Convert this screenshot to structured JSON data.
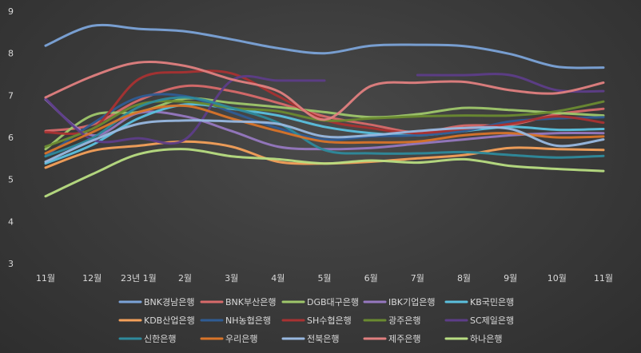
{
  "chart_data": {
    "type": "line",
    "categories": [
      "11월",
      "12월",
      "23년 1월",
      "2월",
      "3월",
      "4월",
      "5월",
      "6월",
      "7월",
      "8월",
      "9월",
      "10월",
      "11월"
    ],
    "ylim": [
      3,
      9
    ],
    "yticks": [
      "3",
      "4",
      "5",
      "6",
      "7",
      "8",
      "9"
    ],
    "grid": false,
    "legend_position": "bottom",
    "series": [
      {
        "name": "BNK경남은행",
        "color": "#7ba3d8",
        "values": [
          8.18,
          8.65,
          8.58,
          8.52,
          8.33,
          8.12,
          8.0,
          8.18,
          8.2,
          8.17,
          7.98,
          7.68,
          7.66
        ]
      },
      {
        "name": "BNK부산은행",
        "color": "#d86a6a",
        "values": [
          6.15,
          6.3,
          6.88,
          7.22,
          7.1,
          6.82,
          6.5,
          6.3,
          6.12,
          6.28,
          6.3,
          6.55,
          6.68
        ]
      },
      {
        "name": "DGB대구은행",
        "color": "#9fc76b",
        "values": [
          5.72,
          6.52,
          6.6,
          6.92,
          6.82,
          6.72,
          6.6,
          6.48,
          6.55,
          6.7,
          6.65,
          6.58,
          6.52
        ]
      },
      {
        "name": "IBK기업은행",
        "color": "#9678c0",
        "values": [
          6.9,
          6.05,
          6.58,
          6.5,
          6.15,
          5.78,
          5.72,
          5.75,
          5.85,
          5.95,
          6.05,
          6.1,
          6.1
        ]
      },
      {
        "name": "KB국민은행",
        "color": "#5bc0de",
        "values": [
          5.38,
          5.82,
          6.45,
          6.78,
          6.68,
          6.52,
          6.25,
          6.1,
          6.05,
          6.15,
          6.25,
          6.18,
          6.2
        ]
      },
      {
        "name": "KDB산업은행",
        "color": "#f4a05a",
        "values": [
          5.28,
          5.68,
          5.8,
          5.9,
          5.78,
          5.42,
          5.38,
          5.42,
          5.5,
          5.58,
          5.75,
          5.72,
          5.7
        ]
      },
      {
        "name": "NH농협은행",
        "color": "#2f5c94",
        "values": [
          5.55,
          6.32,
          6.95,
          6.98,
          6.6,
          6.22,
          5.95,
          6.02,
          6.05,
          6.15,
          6.38,
          6.45,
          6.48
        ]
      },
      {
        "name": "SH수협은행",
        "color": "#a83232",
        "values": [
          6.12,
          6.2,
          7.38,
          7.55,
          7.52,
          6.98,
          6.42,
          6.22,
          6.1,
          6.2,
          6.32,
          6.5,
          6.35
        ]
      },
      {
        "name": "광주은행",
        "color": "#6a8a30",
        "values": [
          5.78,
          6.2,
          6.78,
          6.85,
          6.7,
          6.62,
          6.4,
          6.45,
          6.5,
          6.52,
          6.52,
          6.62,
          6.85
        ]
      },
      {
        "name": "SC제일은행",
        "color": "#5d3d88",
        "values": [
          6.92,
          5.95,
          5.98,
          5.95,
          7.35,
          7.35,
          7.35,
          null,
          7.48,
          7.48,
          7.48,
          7.12,
          7.1
        ]
      },
      {
        "name": "신한은행",
        "color": "#2e8a9c",
        "values": [
          5.55,
          5.98,
          6.72,
          6.95,
          6.7,
          6.35,
          5.7,
          5.62,
          5.62,
          5.65,
          5.58,
          5.52,
          5.56
        ]
      },
      {
        "name": "우리은행",
        "color": "#d8742a",
        "values": [
          5.62,
          6.12,
          6.6,
          6.75,
          6.45,
          6.15,
          5.9,
          5.88,
          5.9,
          6.05,
          6.1,
          6.0,
          6.02
        ]
      },
      {
        "name": "전북은행",
        "color": "#98b8e0",
        "values": [
          5.42,
          5.92,
          6.32,
          6.4,
          6.38,
          6.32,
          6.02,
          6.05,
          6.15,
          6.22,
          6.2,
          5.8,
          5.95
        ]
      },
      {
        "name": "제주은행",
        "color": "#e07f7f",
        "values": [
          6.95,
          7.45,
          7.78,
          7.7,
          7.38,
          7.1,
          6.42,
          7.22,
          7.3,
          7.32,
          7.12,
          7.05,
          7.3
        ]
      },
      {
        "name": "하나은행",
        "color": "#b8dd82",
        "values": [
          4.6,
          5.12,
          5.6,
          5.72,
          5.55,
          5.48,
          5.38,
          5.45,
          5.4,
          5.48,
          5.32,
          5.25,
          5.2
        ]
      }
    ]
  }
}
